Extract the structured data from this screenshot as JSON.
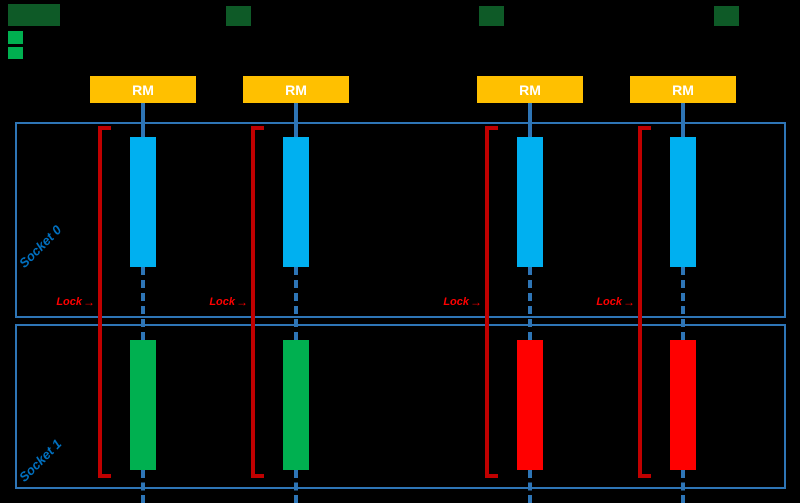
{
  "colors": {
    "background": "#000000",
    "band_border": "#2E75B6",
    "connector": "#2E75B6",
    "rm_fill": "#FFC000",
    "rm_text": "#FFFFFF",
    "bar_blue": "#00B0F0",
    "bar_green": "#00B050",
    "bar_red": "#FF0000",
    "bracket": "#C00000",
    "lock_text": "#FF0000",
    "band_label": "#0070C0",
    "legend_dark_green": "#0E5A27",
    "legend_green": "#00B050"
  },
  "labels": {
    "rm": "RM",
    "lock": "Lock",
    "lock_arrow": "→"
  },
  "bands": [
    {
      "label": "Socket 0"
    },
    {
      "label": "Socket 1"
    }
  ],
  "columns": [
    {
      "rm": "RM",
      "top_bar_color": "bar_blue",
      "bottom_bar_color": "bar_green",
      "locked": true
    },
    {
      "rm": "RM",
      "top_bar_color": "bar_blue",
      "bottom_bar_color": "bar_green",
      "locked": true
    },
    {
      "rm": "RM",
      "top_bar_color": "bar_blue",
      "bottom_bar_color": "bar_red",
      "locked": true
    },
    {
      "rm": "RM",
      "top_bar_color": "bar_blue",
      "bottom_bar_color": "bar_red",
      "locked": true
    }
  ]
}
